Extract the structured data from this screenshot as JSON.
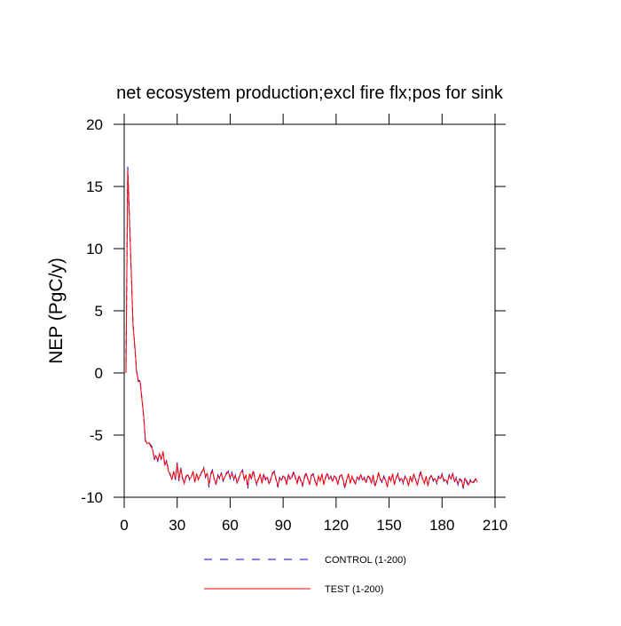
{
  "chart_data": {
    "type": "line",
    "title": "net ecosystem production;excl fire flx;pos for sink",
    "y_label": "NEP  (PgC/y)",
    "x": [
      1,
      2,
      3,
      4,
      5,
      6,
      7,
      8,
      9,
      10,
      11,
      12,
      13,
      14,
      15,
      16,
      17,
      18,
      19,
      20,
      21,
      22,
      23,
      24,
      25,
      26,
      27,
      28,
      29,
      30,
      31,
      32,
      33,
      34,
      35,
      36,
      37,
      38,
      39,
      40,
      41,
      42,
      43,
      44,
      45,
      46,
      47,
      48,
      49,
      50,
      51,
      52,
      53,
      54,
      55,
      56,
      57,
      58,
      59,
      60,
      61,
      62,
      63,
      64,
      65,
      66,
      67,
      68,
      69,
      70,
      71,
      72,
      73,
      74,
      75,
      76,
      77,
      78,
      79,
      80,
      81,
      82,
      83,
      84,
      85,
      86,
      87,
      88,
      89,
      90,
      91,
      92,
      93,
      94,
      95,
      96,
      97,
      98,
      99,
      100,
      101,
      102,
      103,
      104,
      105,
      106,
      107,
      108,
      109,
      110,
      111,
      112,
      113,
      114,
      115,
      116,
      117,
      118,
      119,
      120,
      121,
      122,
      123,
      124,
      125,
      126,
      127,
      128,
      129,
      130,
      131,
      132,
      133,
      134,
      135,
      136,
      137,
      138,
      139,
      140,
      141,
      142,
      143,
      144,
      145,
      146,
      147,
      148,
      149,
      150,
      151,
      152,
      153,
      154,
      155,
      156,
      157,
      158,
      159,
      160,
      161,
      162,
      163,
      164,
      165,
      166,
      167,
      168,
      169,
      170,
      171,
      172,
      173,
      174,
      175,
      176,
      177,
      178,
      179,
      180,
      181,
      182,
      183,
      184,
      185,
      186,
      187,
      188,
      189,
      190,
      191,
      192,
      193,
      194,
      195,
      196,
      197,
      198,
      199,
      200
    ],
    "series": [
      {
        "name": "CONTROL (1-200)",
        "color": "#0000ff",
        "dash": true,
        "values": [
          0.1,
          16.6,
          12.5,
          8.0,
          4.0,
          2.0,
          0.2,
          -0.7,
          -0.6,
          -2.0,
          -3.5,
          -5.5,
          -5.6,
          -5.6,
          -5.8,
          -6.0,
          -7.0,
          -6.6,
          -7.1,
          -6.6,
          -6.9,
          -6.4,
          -7.5,
          -7.0,
          -7.8,
          -8.2,
          -8.5,
          -8.0,
          -8.6,
          -7.2,
          -8.7,
          -7.6,
          -8.5,
          -8.8,
          -8.4,
          -8.1,
          -8.6,
          -8.3,
          -8.0,
          -8.7,
          -8.2,
          -8.5,
          -8.3,
          -7.9,
          -7.6,
          -8.4,
          -8.0,
          -9.2,
          -8.1,
          -7.8,
          -8.6,
          -8.9,
          -8.2,
          -8.5,
          -8.0,
          -8.7,
          -8.3,
          -8.1,
          -7.9,
          -8.5,
          -8.0,
          -8.6,
          -8.2,
          -8.9,
          -8.4,
          -8.1,
          -7.8,
          -8.5,
          -8.3,
          -9.3,
          -8.0,
          -8.6,
          -7.8,
          -8.4,
          -9.0,
          -8.5,
          -8.2,
          -8.8,
          -8.1,
          -8.6,
          -8.3,
          -9.0,
          -8.5,
          -8.1,
          -7.9,
          -8.6,
          -9.2,
          -8.4,
          -8.7,
          -8.2,
          -8.5,
          -8.9,
          -8.1,
          -8.6,
          -8.3,
          -7.9,
          -8.5,
          -8.8,
          -8.2,
          -8.7,
          -9.1,
          -8.4,
          -8.0,
          -8.6,
          -8.9,
          -8.3,
          -8.1,
          -8.7,
          -9.0,
          -8.4,
          -8.6,
          -8.2,
          -8.9,
          -8.5,
          -8.0,
          -8.6,
          -8.3,
          -8.8,
          -8.2,
          -8.5,
          -8.9,
          -8.4,
          -8.1,
          -8.7,
          -9.3,
          -8.5,
          -8.2,
          -8.8,
          -8.4,
          -8.6,
          -9.0,
          -8.3,
          -8.6,
          -8.1,
          -8.7,
          -8.4,
          -8.9,
          -8.2,
          -8.5,
          -8.8,
          -8.3,
          -9.2,
          -8.6,
          -8.1,
          -8.5,
          -8.8,
          -8.3,
          -8.7,
          -9.1,
          -8.4,
          -8.6,
          -8.2,
          -8.9,
          -8.5,
          -8.1,
          -8.7,
          -8.4,
          -8.9,
          -8.3,
          -8.6,
          -9.0,
          -8.4,
          -8.7,
          -8.2,
          -8.5,
          -9.1,
          -8.3,
          -7.9,
          -8.6,
          -8.8,
          -8.4,
          -9.0,
          -8.5,
          -8.2,
          -8.7,
          -8.4,
          -8.9,
          -8.3,
          -8.6,
          -8.1,
          -8.7,
          -8.5,
          -8.9,
          -8.2,
          -8.6,
          -8.0,
          -8.8,
          -8.4,
          -9.0,
          -8.5,
          -8.7,
          -9.3,
          -8.4,
          -8.8,
          -9.1,
          -8.6,
          -8.9,
          -8.7,
          -8.6,
          -8.7
        ]
      },
      {
        "name": "TEST (1-200)",
        "color": "#ff0000",
        "dash": false,
        "values": [
          0.0,
          16.3,
          12.2,
          8.2,
          3.8,
          2.2,
          0.1,
          -0.6,
          -0.7,
          -2.1,
          -3.4,
          -5.4,
          -5.7,
          -5.6,
          -5.9,
          -6.1,
          -6.9,
          -6.7,
          -7.0,
          -6.5,
          -7.0,
          -6.3,
          -7.4,
          -7.1,
          -7.9,
          -8.1,
          -8.6,
          -7.9,
          -8.5,
          -7.3,
          -8.6,
          -7.7,
          -8.4,
          -8.9,
          -8.3,
          -8.2,
          -8.5,
          -8.4,
          -7.9,
          -8.8,
          -8.1,
          -8.6,
          -8.2,
          -8.0,
          -7.7,
          -8.3,
          -8.1,
          -9.0,
          -8.2,
          -7.9,
          -8.5,
          -9.0,
          -8.3,
          -8.4,
          -8.1,
          -8.6,
          -8.4,
          -8.0,
          -8.0,
          -8.4,
          -8.1,
          -8.5,
          -8.3,
          -8.8,
          -8.5,
          -8.0,
          -7.9,
          -8.6,
          -8.2,
          -9.1,
          -8.1,
          -8.5,
          -7.9,
          -8.5,
          -8.9,
          -8.6,
          -8.1,
          -8.9,
          -8.2,
          -8.5,
          -8.4,
          -8.9,
          -8.6,
          -8.0,
          -8.0,
          -8.5,
          -9.1,
          -8.5,
          -8.6,
          -8.3,
          -8.4,
          -9.0,
          -8.2,
          -8.5,
          -8.4,
          -8.0,
          -8.4,
          -8.9,
          -8.3,
          -8.6,
          -9.0,
          -8.5,
          -8.1,
          -8.5,
          -9.0,
          -8.2,
          -8.2,
          -8.6,
          -9.1,
          -8.3,
          -8.7,
          -8.1,
          -9.0,
          -8.4,
          -8.1,
          -8.5,
          -8.4,
          -8.7,
          -8.3,
          -8.4,
          -9.0,
          -8.3,
          -8.2,
          -8.6,
          -9.2,
          -8.6,
          -8.1,
          -8.9,
          -8.3,
          -8.7,
          -8.9,
          -8.4,
          -8.5,
          -8.2,
          -8.6,
          -8.5,
          -8.8,
          -8.3,
          -8.4,
          -8.9,
          -8.2,
          -9.1,
          -8.7,
          -8.0,
          -8.6,
          -8.7,
          -8.4,
          -8.6,
          -9.2,
          -8.3,
          -8.7,
          -8.1,
          -9.0,
          -8.4,
          -8.2,
          -8.6,
          -8.5,
          -8.8,
          -8.4,
          -8.5,
          -9.1,
          -8.3,
          -8.8,
          -8.1,
          -8.6,
          -9.0,
          -8.4,
          -8.0,
          -8.5,
          -8.9,
          -8.3,
          -9.1,
          -8.4,
          -8.3,
          -8.6,
          -8.5,
          -8.8,
          -8.4,
          -8.5,
          -8.2,
          -8.6,
          -8.6,
          -8.8,
          -8.3,
          -8.5,
          -8.1,
          -8.7,
          -8.5,
          -8.9,
          -8.6,
          -8.6,
          -9.2,
          -8.5,
          -8.7,
          -9.0,
          -8.7,
          -8.8,
          -8.8,
          -8.5,
          -8.8
        ]
      }
    ],
    "xlim": [
      0,
      210
    ],
    "xticks": [
      0,
      30,
      60,
      90,
      120,
      150,
      180,
      210
    ],
    "ylim": [
      -10,
      20
    ],
    "yticks": [
      -10,
      -5,
      0,
      5,
      10,
      15,
      20
    ]
  }
}
